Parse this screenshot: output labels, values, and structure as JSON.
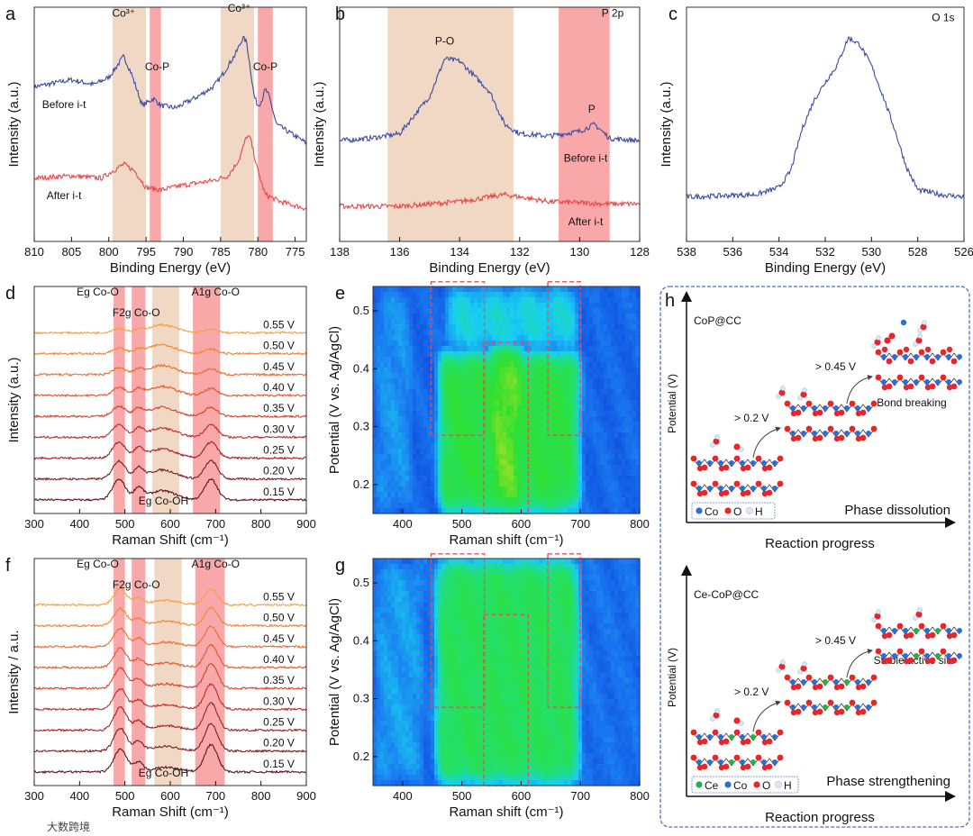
{
  "figure": {
    "watermark": "大数跨境",
    "colors": {
      "blue": "#3a4aa0",
      "red": "#e8484a",
      "tan": "#f0d8c4",
      "pink": "#f8a8a8",
      "co": "#2c6fd0",
      "o": "#e8262a",
      "h": "#d8e8f4",
      "ce": "#22b04a",
      "frame": "#5070c0"
    }
  },
  "chart_data": [
    {
      "id": "a",
      "type": "line",
      "letter": "a",
      "xlabel": "Binding Energy (eV)",
      "ylabel": "Intensity (a.u.)",
      "xlim": [
        810,
        773.5
      ],
      "ylim": [
        0,
        100
      ],
      "xticks": [
        810,
        805,
        800,
        795,
        790,
        785,
        780,
        775
      ],
      "bands": [
        {
          "x": [
            799.5,
            795
          ],
          "kind": "tan"
        },
        {
          "x": [
            794.5,
            793
          ],
          "kind": "pink"
        },
        {
          "x": [
            785,
            780.5
          ],
          "kind": "tan"
        },
        {
          "x": [
            780,
            778
          ],
          "kind": "pink"
        }
      ],
      "annotations": [
        {
          "text": "Co³⁺",
          "x": 798,
          "y": 96
        },
        {
          "text": "Co-P",
          "x": 793.5,
          "y": 73
        },
        {
          "text": "Co³⁺",
          "x": 782.5,
          "y": 98
        },
        {
          "text": "Co-P",
          "x": 779,
          "y": 73
        },
        {
          "text": "Before i-t",
          "x": 806,
          "y": 57
        },
        {
          "text": "After i-t",
          "x": 806,
          "y": 18
        }
      ],
      "series": [
        {
          "name": "Before i-t",
          "color": "blue",
          "points": [
            [
              810,
              66
            ],
            [
              805,
              69
            ],
            [
              802,
              67
            ],
            [
              800,
              70
            ],
            [
              798,
              79
            ],
            [
              797,
              72
            ],
            [
              795.5,
              58
            ],
            [
              794,
              61
            ],
            [
              793,
              58
            ],
            [
              791,
              57
            ],
            [
              788,
              62
            ],
            [
              786,
              66
            ],
            [
              785,
              70
            ],
            [
              783,
              80
            ],
            [
              782,
              87
            ],
            [
              781.5,
              85
            ],
            [
              780.5,
              62
            ],
            [
              780,
              58
            ],
            [
              779.5,
              60
            ],
            [
              779,
              65
            ],
            [
              778.5,
              62
            ],
            [
              777.5,
              50
            ],
            [
              776,
              47
            ],
            [
              773.5,
              42
            ]
          ]
        },
        {
          "name": "After i-t",
          "color": "red",
          "points": [
            [
              810,
              27
            ],
            [
              805,
              28
            ],
            [
              801,
              27
            ],
            [
              799,
              31
            ],
            [
              798,
              33
            ],
            [
              796.5,
              30
            ],
            [
              795,
              23
            ],
            [
              793,
              22
            ],
            [
              790,
              24
            ],
            [
              786,
              26
            ],
            [
              784,
              28
            ],
            [
              782.5,
              35
            ],
            [
              781.5,
              45
            ],
            [
              781,
              44
            ],
            [
              780,
              30
            ],
            [
              779,
              20
            ],
            [
              777,
              17
            ],
            [
              773.5,
              14
            ]
          ]
        }
      ]
    },
    {
      "id": "b",
      "type": "line",
      "letter": "b",
      "xlabel": "Binding Energy (eV)",
      "ylabel": "Intensity (a.u.)",
      "xlim": [
        138,
        128
      ],
      "ylim": [
        0,
        100
      ],
      "xticks": [
        138,
        136,
        134,
        132,
        130,
        128
      ],
      "bands": [
        {
          "x": [
            136.4,
            132.2
          ],
          "kind": "tan"
        },
        {
          "x": [
            130.7,
            129
          ],
          "kind": "pink"
        }
      ],
      "annotations": [
        {
          "text": "P-O",
          "x": 134.5,
          "y": 84
        },
        {
          "text": "P",
          "x": 129.6,
          "y": 55
        },
        {
          "text": "P 2p",
          "x": 128.9,
          "y": 96
        },
        {
          "text": "Before i-t",
          "x": 129.8,
          "y": 34,
          "color": "#8a5a9a"
        },
        {
          "text": "After i-t",
          "x": 129.8,
          "y": 7,
          "color": "#f06060"
        }
      ],
      "series": [
        {
          "name": "Before i-t",
          "color": "blue",
          "points": [
            [
              138,
              43
            ],
            [
              137,
              44
            ],
            [
              136,
              46
            ],
            [
              135,
              62
            ],
            [
              134.5,
              78
            ],
            [
              134,
              77
            ],
            [
              133,
              64
            ],
            [
              132.5,
              50
            ],
            [
              132,
              46
            ],
            [
              131,
              45
            ],
            [
              130,
              47
            ],
            [
              129.5,
              50
            ],
            [
              129,
              44
            ],
            [
              128,
              43
            ]
          ]
        },
        {
          "name": "After i-t",
          "color": "red",
          "points": [
            [
              138,
              15
            ],
            [
              136,
              15
            ],
            [
              134,
              17
            ],
            [
              132.5,
              20
            ],
            [
              131,
              17
            ],
            [
              129,
              16
            ],
            [
              128,
              16
            ]
          ]
        }
      ]
    },
    {
      "id": "c",
      "type": "line",
      "letter": "c",
      "xlabel": "Binding Energy (eV)",
      "ylabel": "Intensity (a.u.)",
      "xlim": [
        538,
        526
      ],
      "ylim": [
        0,
        100
      ],
      "xticks": [
        538,
        536,
        534,
        532,
        530,
        528,
        526
      ],
      "bands": [],
      "annotations": [
        {
          "text": "O 1s",
          "x": 526.9,
          "y": 94
        }
      ],
      "series": [
        {
          "name": "O 1s",
          "color": "blue",
          "points": [
            [
              538,
              19
            ],
            [
              535,
              20
            ],
            [
              534,
              23
            ],
            [
              533.5,
              30
            ],
            [
              533,
              48
            ],
            [
              532.5,
              60
            ],
            [
              532,
              68
            ],
            [
              531.5,
              75
            ],
            [
              531,
              87
            ],
            [
              530.5,
              84
            ],
            [
              530,
              75
            ],
            [
              529.5,
              62
            ],
            [
              529,
              48
            ],
            [
              528.5,
              32
            ],
            [
              528,
              22
            ],
            [
              527,
              20
            ],
            [
              526,
              19
            ]
          ]
        }
      ]
    },
    {
      "id": "d",
      "type": "line",
      "letter": "d",
      "xlabel": "Raman Shift (cm⁻¹)",
      "ylabel": "Intensity (a.u.)",
      "xlim": [
        300,
        900
      ],
      "ylim": [
        0,
        100
      ],
      "xticks": [
        300,
        400,
        500,
        600,
        700,
        800,
        900
      ],
      "bands": [
        {
          "x": [
            475,
            500
          ],
          "kind": "pink"
        },
        {
          "x": [
            515,
            545
          ],
          "kind": "pink"
        },
        {
          "x": [
            560,
            620
          ],
          "kind": "tan"
        },
        {
          "x": [
            650,
            710
          ],
          "kind": "pink"
        }
      ],
      "annotations": [
        {
          "text": "Eg Co-O",
          "x": 440,
          "y": 96
        },
        {
          "text": "F2g Co-O",
          "x": 525,
          "y": 87
        },
        {
          "text": "A1g Co-O",
          "x": 700,
          "y": 96
        },
        {
          "text": "Eg Co-OH",
          "x": 585,
          "y": 4
        }
      ],
      "peak_centers": [
        487,
        530,
        582,
        690
      ],
      "series": [
        {
          "name": "0.15 V",
          "color": "#5a1414",
          "amps": [
            9,
            5,
            4,
            9
          ]
        },
        {
          "name": "0.20 V",
          "color": "#7a1c1c",
          "amps": [
            8,
            4.5,
            4,
            8
          ]
        },
        {
          "name": "0.25 V",
          "color": "#a22020",
          "amps": [
            7,
            4,
            4,
            7
          ]
        },
        {
          "name": "0.30 V",
          "color": "#c22a26",
          "amps": [
            5.5,
            3.5,
            4,
            5.5
          ]
        },
        {
          "name": "0.35 V",
          "color": "#d8402c",
          "amps": [
            4.5,
            3,
            4,
            4
          ]
        },
        {
          "name": "0.40 V",
          "color": "#e4552e",
          "amps": [
            3.5,
            2.5,
            4,
            3
          ]
        },
        {
          "name": "0.45 V",
          "color": "#ec6a30",
          "amps": [
            3,
            2,
            4,
            2.5
          ]
        },
        {
          "name": "0.50 V",
          "color": "#f08434",
          "amps": [
            2.5,
            1.5,
            4,
            2
          ]
        },
        {
          "name": "0.55 V",
          "color": "#f4a040",
          "amps": [
            2,
            1,
            3.5,
            1.5
          ]
        }
      ]
    },
    {
      "id": "e",
      "type": "heatmap",
      "letter": "e",
      "xlabel": "Raman shift (cm⁻¹)",
      "ylabel": "Potential (V vs. Ag/AgCl)",
      "xlim": [
        350,
        800
      ],
      "ylim": [
        0.15,
        0.542
      ],
      "xticks": [
        400,
        500,
        600,
        700,
        800
      ],
      "yticks": [
        0.2,
        0.3,
        0.4,
        0.5
      ],
      "colormap": [
        "#0a3ed8",
        "#1a78f0",
        "#18d0f0",
        "#22e070",
        "#30e030",
        "#d8e020",
        "#f03020"
      ],
      "background": 0.12,
      "regions": [
        {
          "x": [
            460,
            700
          ],
          "y": [
            0.15,
            0.43
          ],
          "level": 0.62
        },
        {
          "x": [
            470,
            700
          ],
          "y": [
            0.43,
            0.542
          ],
          "level": 0.36
        },
        {
          "x": [
            540,
            610
          ],
          "y": [
            0.15,
            0.44
          ],
          "level": 0.72
        },
        {
          "x": [
            350,
            420
          ],
          "y": [
            0.15,
            0.542
          ],
          "level": 0.22
        }
      ],
      "dashed_boxes": [
        {
          "x": [
            448,
            538
          ],
          "y": [
            0.285,
            0.55
          ]
        },
        {
          "x": [
            537,
            612
          ],
          "y": [
            0.15,
            0.445
          ]
        },
        {
          "x": [
            645,
            700
          ],
          "y": [
            0.285,
            0.55
          ]
        }
      ]
    },
    {
      "id": "f",
      "type": "line",
      "letter": "f",
      "xlabel": "Raman Shift (cm⁻¹)",
      "ylabel": "Intensity / a.u.",
      "xlim": [
        300,
        900
      ],
      "ylim": [
        0,
        100
      ],
      "xticks": [
        300,
        400,
        500,
        600,
        700,
        800,
        900
      ],
      "bands": [
        {
          "x": [
            475,
            500
          ],
          "kind": "pink"
        },
        {
          "x": [
            515,
            545
          ],
          "kind": "pink"
        },
        {
          "x": [
            565,
            625
          ],
          "kind": "tan"
        },
        {
          "x": [
            655,
            720
          ],
          "kind": "pink"
        }
      ],
      "annotations": [
        {
          "text": "Eg Co-O",
          "x": 440,
          "y": 96
        },
        {
          "text": "F2g Co-O",
          "x": 525,
          "y": 87
        },
        {
          "text": "A1g Co-O",
          "x": 700,
          "y": 96
        },
        {
          "text": "Eg Co-OH",
          "x": 585,
          "y": 4
        }
      ],
      "peak_centers": [
        490,
        530,
        590,
        690
      ],
      "series": [
        {
          "name": "0.15 V",
          "color": "#5a1414",
          "amps": [
            10,
            4,
            2,
            12
          ]
        },
        {
          "name": "0.20 V",
          "color": "#7a1c1c",
          "amps": [
            10,
            4,
            2,
            12
          ]
        },
        {
          "name": "0.25 V",
          "color": "#a22020",
          "amps": [
            10,
            4,
            2,
            12
          ]
        },
        {
          "name": "0.30 V",
          "color": "#c22a26",
          "amps": [
            9,
            4,
            2,
            11
          ]
        },
        {
          "name": "0.35 V",
          "color": "#d8402c",
          "amps": [
            9,
            4,
            2,
            11
          ]
        },
        {
          "name": "0.40 V",
          "color": "#e4552e",
          "amps": [
            8.5,
            3.5,
            2,
            10
          ]
        },
        {
          "name": "0.45 V",
          "color": "#ec6a30",
          "amps": [
            8,
            3.5,
            2,
            9
          ]
        },
        {
          "name": "0.50 V",
          "color": "#f08434",
          "amps": [
            7.5,
            3,
            2,
            8
          ]
        },
        {
          "name": "0.55 V",
          "color": "#f4a040",
          "amps": [
            7,
            3,
            2,
            7
          ]
        }
      ]
    },
    {
      "id": "g",
      "type": "heatmap",
      "letter": "g",
      "xlabel": "Raman shift (cm⁻¹)",
      "ylabel": "Potential (V vs. Ag/AgCl)",
      "xlim": [
        350,
        800
      ],
      "ylim": [
        0.15,
        0.542
      ],
      "xticks": [
        400,
        500,
        600,
        700,
        800
      ],
      "yticks": [
        0.2,
        0.3,
        0.4,
        0.5
      ],
      "colormap": [
        "#0a3ed8",
        "#1a78f0",
        "#18d0f0",
        "#22e070",
        "#30e030",
        "#d8e020",
        "#f03020"
      ],
      "background": 0.14,
      "regions": [
        {
          "x": [
            455,
            700
          ],
          "y": [
            0.15,
            0.542
          ],
          "level": 0.56
        },
        {
          "x": [
            480,
            505
          ],
          "y": [
            0.15,
            0.542
          ],
          "level": 0.7
        },
        {
          "x": [
            665,
            690
          ],
          "y": [
            0.15,
            0.542
          ],
          "level": 0.72
        },
        {
          "x": [
            483,
            500
          ],
          "y": [
            0.15,
            0.27
          ],
          "level": 0.82
        },
        {
          "x": [
            670,
            688
          ],
          "y": [
            0.15,
            0.28
          ],
          "level": 0.88
        },
        {
          "x": [
            350,
            440
          ],
          "y": [
            0.15,
            0.542
          ],
          "level": 0.24
        }
      ],
      "dashed_boxes": [
        {
          "x": [
            448,
            538
          ],
          "y": [
            0.285,
            0.55
          ]
        },
        {
          "x": [
            537,
            612
          ],
          "y": [
            0.15,
            0.445
          ]
        },
        {
          "x": [
            645,
            700
          ],
          "y": [
            0.285,
            0.55
          ]
        }
      ]
    }
  ],
  "panel_h": {
    "letter": "h",
    "top": {
      "title": "CoP@CC",
      "yaxis": "Potential (V)",
      "xaxis": "Reaction progress",
      "step1": "> 0.2 V",
      "step2": "> 0.45 V",
      "result": "Bond breaking",
      "phase": "Phase dissolution",
      "legend": [
        "Co",
        "O",
        "H"
      ]
    },
    "bottom": {
      "title": "Ce-CoP@CC",
      "yaxis": "Potential (V)",
      "xaxis": "Reaction progress",
      "step1": "> 0.2 V",
      "step2": "> 0.45 V",
      "result": "Stable active site",
      "phase": "Phase strengthening",
      "legend": [
        "Ce",
        "Co",
        "O",
        "H"
      ]
    }
  }
}
